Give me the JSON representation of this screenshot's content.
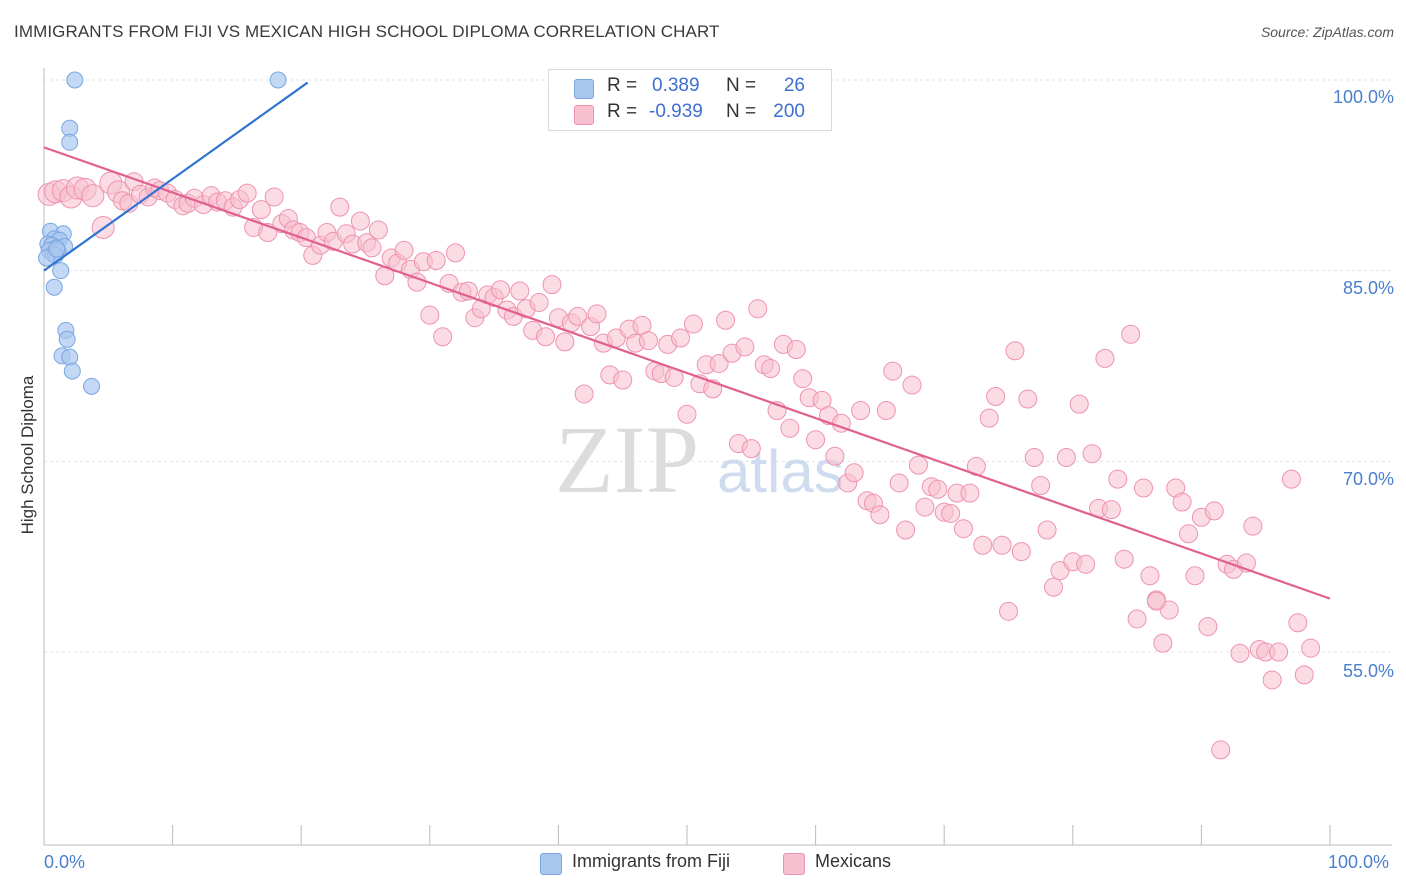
{
  "title": "IMMIGRANTS FROM FIJI VS MEXICAN HIGH SCHOOL DIPLOMA CORRELATION CHART",
  "source": "Source: ZipAtlas.com",
  "watermark": {
    "zip": "ZIP",
    "atlas": "atlas"
  },
  "legend_top": {
    "rows": [
      {
        "r_label": "R =",
        "r_value": "0.389",
        "n_label": "N =",
        "n_value": "26",
        "color": "#a9c8f0",
        "border": "#7aa6e0"
      },
      {
        "r_label": "R =",
        "r_value": "-0.939",
        "n_label": "N =",
        "n_value": "200",
        "color": "#f7bfd0",
        "border": "#ee93ae"
      }
    ]
  },
  "legend_bottom": [
    {
      "label": "Immigrants from Fiji",
      "color": "#a9c8f0",
      "border": "#7aa6e0"
    },
    {
      "label": "Mexicans",
      "color": "#f7bfd0",
      "border": "#ee93ae"
    }
  ],
  "chart_data": {
    "type": "scatter",
    "title": "IMMIGRANTS FROM FIJI VS MEXICAN HIGH SCHOOL DIPLOMA CORRELATION CHART",
    "xlabel": "",
    "ylabel": "High School Diploma",
    "xlim": [
      0,
      100
    ],
    "ylim": [
      40,
      102
    ],
    "x_ticks": [
      "0.0%",
      "100.0%"
    ],
    "y_ticks": [
      {
        "value": 100,
        "label": "100.0%"
      },
      {
        "value": 85,
        "label": "85.0%"
      },
      {
        "value": 70,
        "label": "70.0%"
      },
      {
        "value": 55,
        "label": "55.0%"
      }
    ],
    "grid": true,
    "series": [
      {
        "name": "Immigrants from Fiji",
        "color": "#7aa6e0",
        "fill": "#a9c8f0",
        "trend_color": "#2f74d0",
        "trend": {
          "x0": 0,
          "y0": 85.0,
          "x1": 20.5,
          "y1": 99.8
        },
        "points": [
          [
            2.4,
            100.0
          ],
          [
            18.2,
            100.0
          ],
          [
            2.0,
            96.2
          ],
          [
            2.0,
            95.1
          ],
          [
            0.5,
            88.1
          ],
          [
            1.5,
            87.9
          ],
          [
            0.8,
            87.5
          ],
          [
            1.2,
            87.4
          ],
          [
            0.3,
            87.1
          ],
          [
            0.6,
            87.0
          ],
          [
            1.0,
            86.8
          ],
          [
            1.6,
            86.9
          ],
          [
            0.4,
            86.6
          ],
          [
            1.1,
            86.5
          ],
          [
            0.7,
            86.3
          ],
          [
            0.9,
            86.2
          ],
          [
            0.2,
            86.0
          ],
          [
            1.3,
            85.0
          ],
          [
            0.8,
            83.7
          ],
          [
            1.7,
            80.3
          ],
          [
            1.8,
            79.6
          ],
          [
            1.4,
            78.3
          ],
          [
            2.0,
            78.2
          ],
          [
            2.2,
            77.1
          ],
          [
            3.7,
            75.9
          ],
          [
            1.0,
            86.7
          ]
        ]
      },
      {
        "name": "Mexicans",
        "color": "#ee93ae",
        "fill": "#f7bfd0",
        "trend_color": "#e0618d",
        "trend": {
          "x0": 0,
          "y0": 94.7,
          "x1": 100,
          "y1": 59.2
        },
        "points": [
          [
            0.4,
            91.0
          ],
          [
            0.9,
            91.2
          ],
          [
            1.5,
            91.3
          ],
          [
            2.1,
            90.8
          ],
          [
            2.6,
            91.5
          ],
          [
            3.2,
            91.4
          ],
          [
            3.8,
            90.9
          ],
          [
            4.6,
            88.4
          ],
          [
            5.2,
            91.9
          ],
          [
            5.8,
            91.2
          ],
          [
            6.1,
            90.5
          ],
          [
            6.6,
            90.3
          ],
          [
            7.0,
            92.0
          ],
          [
            7.5,
            91.0
          ],
          [
            8.1,
            90.8
          ],
          [
            8.6,
            91.5
          ],
          [
            9.0,
            91.3
          ],
          [
            9.6,
            91.1
          ],
          [
            10.2,
            90.6
          ],
          [
            10.8,
            90.1
          ],
          [
            11.2,
            90.3
          ],
          [
            11.7,
            90.7
          ],
          [
            12.4,
            90.2
          ],
          [
            13.0,
            90.9
          ],
          [
            13.5,
            90.4
          ],
          [
            14.1,
            90.5
          ],
          [
            14.7,
            90.0
          ],
          [
            15.2,
            90.6
          ],
          [
            15.8,
            91.1
          ],
          [
            16.3,
            88.4
          ],
          [
            16.9,
            89.8
          ],
          [
            17.4,
            88.0
          ],
          [
            17.9,
            90.8
          ],
          [
            18.5,
            88.7
          ],
          [
            19.0,
            89.1
          ],
          [
            19.4,
            88.2
          ],
          [
            19.9,
            88.0
          ],
          [
            20.4,
            87.6
          ],
          [
            20.9,
            86.2
          ],
          [
            21.5,
            87.0
          ],
          [
            22.0,
            88.0
          ],
          [
            22.5,
            87.3
          ],
          [
            23.0,
            90.0
          ],
          [
            23.5,
            87.9
          ],
          [
            24.0,
            87.1
          ],
          [
            24.6,
            88.9
          ],
          [
            25.1,
            87.2
          ],
          [
            25.5,
            86.8
          ],
          [
            26.0,
            88.2
          ],
          [
            26.5,
            84.6
          ],
          [
            27.0,
            86.0
          ],
          [
            27.5,
            85.6
          ],
          [
            28.0,
            86.6
          ],
          [
            28.5,
            85.1
          ],
          [
            29.0,
            84.1
          ],
          [
            29.5,
            85.7
          ],
          [
            30.0,
            81.5
          ],
          [
            30.5,
            85.8
          ],
          [
            31.0,
            79.8
          ],
          [
            31.5,
            84.0
          ],
          [
            32.0,
            86.4
          ],
          [
            32.5,
            83.3
          ],
          [
            33.0,
            83.4
          ],
          [
            33.5,
            81.3
          ],
          [
            34.0,
            82.0
          ],
          [
            34.5,
            83.1
          ],
          [
            35.0,
            82.9
          ],
          [
            35.5,
            83.5
          ],
          [
            36.0,
            81.9
          ],
          [
            36.5,
            81.4
          ],
          [
            37.0,
            83.4
          ],
          [
            37.5,
            82.0
          ],
          [
            38.0,
            80.3
          ],
          [
            38.5,
            82.5
          ],
          [
            39.0,
            79.8
          ],
          [
            39.5,
            83.9
          ],
          [
            40.0,
            81.3
          ],
          [
            40.5,
            79.4
          ],
          [
            41.0,
            80.9
          ],
          [
            41.5,
            81.4
          ],
          [
            42.0,
            75.3
          ],
          [
            42.5,
            80.6
          ],
          [
            43.0,
            81.6
          ],
          [
            43.5,
            79.3
          ],
          [
            44.0,
            76.8
          ],
          [
            44.5,
            79.7
          ],
          [
            45.0,
            76.4
          ],
          [
            45.5,
            80.4
          ],
          [
            46.0,
            79.3
          ],
          [
            46.5,
            80.7
          ],
          [
            47.0,
            79.5
          ],
          [
            47.5,
            77.1
          ],
          [
            48.0,
            76.9
          ],
          [
            48.5,
            79.2
          ],
          [
            49.0,
            76.6
          ],
          [
            49.5,
            79.7
          ],
          [
            50.0,
            73.7
          ],
          [
            50.5,
            80.8
          ],
          [
            51.0,
            76.1
          ],
          [
            51.5,
            77.6
          ],
          [
            52.0,
            75.7
          ],
          [
            52.5,
            77.7
          ],
          [
            53.0,
            81.1
          ],
          [
            53.5,
            78.5
          ],
          [
            54.0,
            71.4
          ],
          [
            54.5,
            79.0
          ],
          [
            55.0,
            71.0
          ],
          [
            55.5,
            82.0
          ],
          [
            56.0,
            77.6
          ],
          [
            56.5,
            77.3
          ],
          [
            57.0,
            74.0
          ],
          [
            57.5,
            79.2
          ],
          [
            58.0,
            72.6
          ],
          [
            58.5,
            78.8
          ],
          [
            59.0,
            76.5
          ],
          [
            59.5,
            75.0
          ],
          [
            60.0,
            71.7
          ],
          [
            60.5,
            74.8
          ],
          [
            61.0,
            73.6
          ],
          [
            61.5,
            70.4
          ],
          [
            62.0,
            73.0
          ],
          [
            62.5,
            68.3
          ],
          [
            63.0,
            69.1
          ],
          [
            63.5,
            74.0
          ],
          [
            64.0,
            66.9
          ],
          [
            64.5,
            66.7
          ],
          [
            65.0,
            65.8
          ],
          [
            65.5,
            74.0
          ],
          [
            66.0,
            77.1
          ],
          [
            66.5,
            68.3
          ],
          [
            67.0,
            64.6
          ],
          [
            67.5,
            76.0
          ],
          [
            68.0,
            69.7
          ],
          [
            68.5,
            66.4
          ],
          [
            69.0,
            68.0
          ],
          [
            69.5,
            67.8
          ],
          [
            70.0,
            66.0
          ],
          [
            70.5,
            65.9
          ],
          [
            71.0,
            67.5
          ],
          [
            71.5,
            64.7
          ],
          [
            72.0,
            67.5
          ],
          [
            72.5,
            69.6
          ],
          [
            73.0,
            63.4
          ],
          [
            73.5,
            73.4
          ],
          [
            74.0,
            75.1
          ],
          [
            74.5,
            63.4
          ],
          [
            75.0,
            58.2
          ],
          [
            75.5,
            78.7
          ],
          [
            76.0,
            62.9
          ],
          [
            76.5,
            74.9
          ],
          [
            77.0,
            70.3
          ],
          [
            77.5,
            68.1
          ],
          [
            78.0,
            64.6
          ],
          [
            78.5,
            60.1
          ],
          [
            79.0,
            61.4
          ],
          [
            79.5,
            70.3
          ],
          [
            80.0,
            62.1
          ],
          [
            80.5,
            74.5
          ],
          [
            81.0,
            61.9
          ],
          [
            81.5,
            70.6
          ],
          [
            82.0,
            66.3
          ],
          [
            82.5,
            78.1
          ],
          [
            83.0,
            66.2
          ],
          [
            83.5,
            68.6
          ],
          [
            84.0,
            62.3
          ],
          [
            84.5,
            80.0
          ],
          [
            85.0,
            57.6
          ],
          [
            85.5,
            67.9
          ],
          [
            86.0,
            61.0
          ],
          [
            86.5,
            59.1
          ],
          [
            87.0,
            55.7
          ],
          [
            87.5,
            58.3
          ],
          [
            88.0,
            67.9
          ],
          [
            88.5,
            66.8
          ],
          [
            89.0,
            64.3
          ],
          [
            89.5,
            61.0
          ],
          [
            90.0,
            65.6
          ],
          [
            90.5,
            57.0
          ],
          [
            91.0,
            66.1
          ],
          [
            91.5,
            47.3
          ],
          [
            92.0,
            61.9
          ],
          [
            92.5,
            61.5
          ],
          [
            93.0,
            54.9
          ],
          [
            93.5,
            62.0
          ],
          [
            94.0,
            64.9
          ],
          [
            94.5,
            55.2
          ],
          [
            95.0,
            55.0
          ],
          [
            95.5,
            52.8
          ],
          [
            96.0,
            55.0
          ],
          [
            97.0,
            68.6
          ],
          [
            97.5,
            57.3
          ],
          [
            98.0,
            53.2
          ],
          [
            98.5,
            55.3
          ],
          [
            86.5,
            59.0
          ]
        ]
      }
    ]
  }
}
